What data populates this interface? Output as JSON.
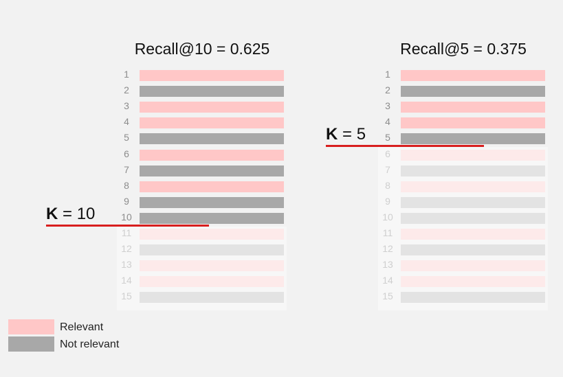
{
  "left_panel": {
    "title": "Recall@10 = 0.625",
    "k_symbol": "K",
    "k_rest": " = 10",
    "k": 10
  },
  "right_panel": {
    "title": "Recall@5 = 0.375",
    "k_symbol": "K",
    "k_rest": " = 5",
    "k": 5
  },
  "ranks": [
    {
      "n": "1",
      "relevant": true
    },
    {
      "n": "2",
      "relevant": false
    },
    {
      "n": "3",
      "relevant": true
    },
    {
      "n": "4",
      "relevant": true
    },
    {
      "n": "5",
      "relevant": false
    },
    {
      "n": "6",
      "relevant": true
    },
    {
      "n": "7",
      "relevant": false
    },
    {
      "n": "8",
      "relevant": true
    },
    {
      "n": "9",
      "relevant": false
    },
    {
      "n": "10",
      "relevant": false
    },
    {
      "n": "11",
      "relevant": true
    },
    {
      "n": "12",
      "relevant": false
    },
    {
      "n": "13",
      "relevant": true
    },
    {
      "n": "14",
      "relevant": true
    },
    {
      "n": "15",
      "relevant": false
    }
  ],
  "legend": {
    "relevant": "Relevant",
    "not_relevant": "Not relevant"
  },
  "colors": {
    "relevant": "#ffc7c7",
    "not_relevant": "#a8a8a8",
    "relevant_faded": "#fdeaea",
    "not_relevant_faded": "#e3e3e3",
    "cutoff_line": "#d81e1e"
  }
}
